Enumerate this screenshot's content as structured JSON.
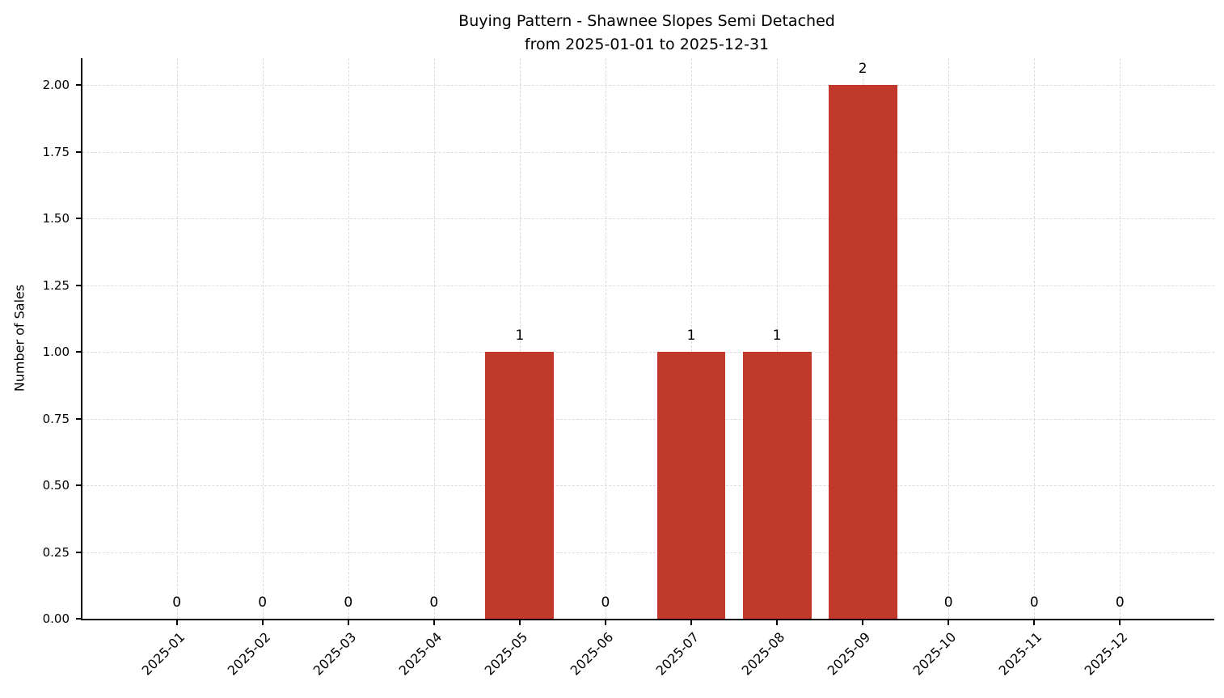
{
  "chart_data": {
    "type": "bar",
    "title": "Buying Pattern - Shawnee Slopes Semi Detached",
    "subtitle": "from 2025-01-01 to 2025-12-31",
    "xlabel": "",
    "ylabel": "Number of Sales",
    "categories": [
      "2025-01",
      "2025-02",
      "2025-03",
      "2025-04",
      "2025-05",
      "2025-06",
      "2025-07",
      "2025-08",
      "2025-09",
      "2025-10",
      "2025-11",
      "2025-12"
    ],
    "values": [
      0,
      0,
      0,
      0,
      1,
      0,
      1,
      1,
      2,
      0,
      0,
      0
    ],
    "value_labels": [
      "0",
      "0",
      "0",
      "0",
      "1",
      "0",
      "1",
      "1",
      "2",
      "0",
      "0",
      "0"
    ],
    "ylim": [
      0,
      2.1
    ],
    "yticks": [
      0,
      0.25,
      0.5,
      0.75,
      1.0,
      1.25,
      1.5,
      1.75,
      2.0
    ],
    "ytick_labels": [
      "0.00",
      "0.25",
      "0.50",
      "0.75",
      "1.00",
      "1.25",
      "1.50",
      "1.75",
      "2.00"
    ],
    "bar_color": "#c0392b",
    "grid": true,
    "grid_style": "dashed",
    "legend": "none"
  }
}
